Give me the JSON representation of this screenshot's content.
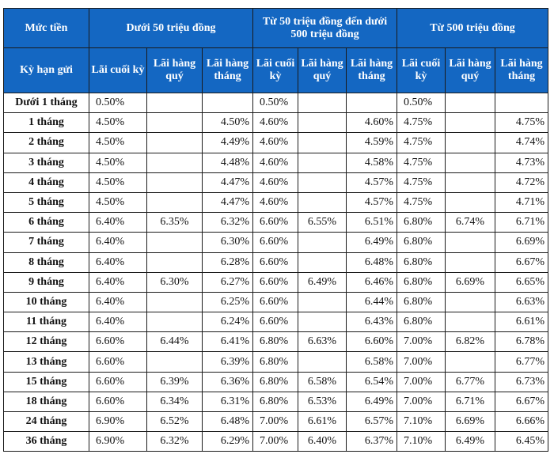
{
  "header": {
    "amount_label": "Mức tiền",
    "term_label": "Kỳ hạn gửi",
    "groups": [
      "Dưới 50 triệu đồng",
      "Từ 50 triệu đồng đến dưới 500 triệu đồng",
      "Từ 500 triệu đồng"
    ],
    "sub_columns": [
      "Lãi cuối kỳ",
      "Lãi hàng quý",
      "Lãi hàng tháng"
    ]
  },
  "rows": [
    {
      "term": "Dưới 1 tháng",
      "values": [
        "0.50%",
        "",
        "",
        "0.50%",
        "",
        "",
        "0.50%",
        "",
        ""
      ]
    },
    {
      "term": "1 tháng",
      "values": [
        "4.50%",
        "",
        "4.50%",
        "4.60%",
        "",
        "4.60%",
        "4.75%",
        "",
        "4.75%"
      ]
    },
    {
      "term": "2 tháng",
      "values": [
        "4.50%",
        "",
        "4.49%",
        "4.60%",
        "",
        "4.59%",
        "4.75%",
        "",
        "4.74%"
      ]
    },
    {
      "term": "3 tháng",
      "values": [
        "4.50%",
        "",
        "4.48%",
        "4.60%",
        "",
        "4.58%",
        "4.75%",
        "",
        "4.73%"
      ]
    },
    {
      "term": "4 tháng",
      "values": [
        "4.50%",
        "",
        "4.47%",
        "4.60%",
        "",
        "4.57%",
        "4.75%",
        "",
        "4.72%"
      ]
    },
    {
      "term": "5 tháng",
      "values": [
        "4.50%",
        "",
        "4.47%",
        "4.60%",
        "",
        "4.57%",
        "4.75%",
        "",
        "4.71%"
      ]
    },
    {
      "term": "6 tháng",
      "values": [
        "6.40%",
        "6.35%",
        "6.32%",
        "6.60%",
        "6.55%",
        "6.51%",
        "6.80%",
        "6.74%",
        "6.71%"
      ]
    },
    {
      "term": "7 tháng",
      "values": [
        "6.40%",
        "",
        "6.30%",
        "6.60%",
        "",
        "6.49%",
        "6.80%",
        "",
        "6.69%"
      ]
    },
    {
      "term": "8 tháng",
      "values": [
        "6.40%",
        "",
        "6.28%",
        "6.60%",
        "",
        "6.48%",
        "6.80%",
        "",
        "6.67%"
      ]
    },
    {
      "term": "9 tháng",
      "values": [
        "6.40%",
        "6.30%",
        "6.27%",
        "6.60%",
        "6.49%",
        "6.46%",
        "6.80%",
        "6.69%",
        "6.65%"
      ]
    },
    {
      "term": "10 tháng",
      "values": [
        "6.40%",
        "",
        "6.25%",
        "6.60%",
        "",
        "6.44%",
        "6.80%",
        "",
        "6.63%"
      ]
    },
    {
      "term": "11 tháng",
      "values": [
        "6.40%",
        "",
        "6.24%",
        "6.60%",
        "",
        "6.43%",
        "6.80%",
        "",
        "6.61%"
      ]
    },
    {
      "term": "12 tháng",
      "values": [
        "6.60%",
        "6.44%",
        "6.41%",
        "6.80%",
        "6.63%",
        "6.60%",
        "7.00%",
        "6.82%",
        "6.78%"
      ]
    },
    {
      "term": "13 tháng",
      "values": [
        "6.60%",
        "",
        "6.39%",
        "6.80%",
        "",
        "6.58%",
        "7.00%",
        "",
        "6.77%"
      ]
    },
    {
      "term": "15 tháng",
      "values": [
        "6.60%",
        "6.39%",
        "6.36%",
        "6.80%",
        "6.58%",
        "6.54%",
        "7.00%",
        "6.77%",
        "6.73%"
      ]
    },
    {
      "term": "18 tháng",
      "values": [
        "6.60%",
        "6.34%",
        "6.31%",
        "6.80%",
        "6.53%",
        "6.49%",
        "7.00%",
        "6.71%",
        "6.67%"
      ]
    },
    {
      "term": "24 tháng",
      "values": [
        "6.90%",
        "6.52%",
        "6.48%",
        "7.00%",
        "6.61%",
        "6.57%",
        "7.10%",
        "6.69%",
        "6.66%"
      ]
    },
    {
      "term": "36 tháng",
      "values": [
        "6.90%",
        "6.32%",
        "6.29%",
        "7.00%",
        "6.40%",
        "6.37%",
        "7.10%",
        "6.49%",
        "6.45%"
      ]
    }
  ]
}
